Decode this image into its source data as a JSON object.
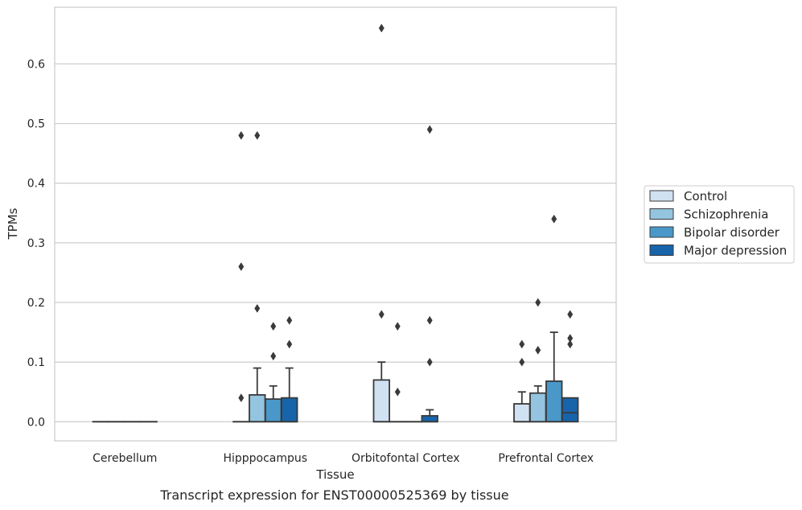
{
  "caption": "Transcript expression for ENST00000525369 by tissue",
  "chart_data": {
    "type": "boxplot",
    "xlabel": "Tissue",
    "ylabel": "TPMs",
    "ylim": [
      -0.032,
      0.695
    ],
    "yticks": [
      0.0,
      0.1,
      0.2,
      0.3,
      0.4,
      0.5,
      0.6
    ],
    "ytick_labels": [
      "0.0",
      "0.1",
      "0.2",
      "0.3",
      "0.4",
      "0.5",
      "0.6"
    ],
    "grid": "horizontal",
    "legend_position": "right",
    "categories": [
      "Cerebellum",
      "Hipppocampus",
      "Orbitofontal Cortex",
      "Prefrontal Cortex"
    ],
    "series": [
      {
        "name": "Control",
        "color": "#d0e1f2",
        "boxes": [
          {
            "q1": 0,
            "median": 0,
            "q3": 0,
            "whislo": 0,
            "whishi": 0,
            "fliers": []
          },
          {
            "q1": 0,
            "median": 0,
            "q3": 0,
            "whislo": 0,
            "whishi": 0,
            "fliers": [
              0.04,
              0.26,
              0.48
            ]
          },
          {
            "q1": 0,
            "median": 0,
            "q3": 0.07,
            "whislo": 0,
            "whishi": 0.1,
            "fliers": [
              0.18,
              0.66
            ]
          },
          {
            "q1": 0,
            "median": 0,
            "q3": 0.03,
            "whislo": 0,
            "whishi": 0.05,
            "fliers": [
              0.1,
              0.13
            ]
          }
        ]
      },
      {
        "name": "Schizophrenia",
        "color": "#94c4df",
        "boxes": [
          {
            "q1": 0,
            "median": 0,
            "q3": 0,
            "whislo": 0,
            "whishi": 0,
            "fliers": []
          },
          {
            "q1": 0,
            "median": 0,
            "q3": 0.045,
            "whislo": 0,
            "whishi": 0.09,
            "fliers": [
              0.19,
              0.48
            ]
          },
          {
            "q1": 0,
            "median": 0,
            "q3": 0,
            "whislo": 0,
            "whishi": 0,
            "fliers": [
              0.05,
              0.16
            ]
          },
          {
            "q1": 0,
            "median": 0,
            "q3": 0.048,
            "whislo": 0,
            "whishi": 0.06,
            "fliers": [
              0.12,
              0.2
            ]
          }
        ]
      },
      {
        "name": "Bipolar disorder",
        "color": "#4a98c9",
        "boxes": [
          {
            "q1": 0,
            "median": 0,
            "q3": 0,
            "whislo": 0,
            "whishi": 0,
            "fliers": []
          },
          {
            "q1": 0,
            "median": 0,
            "q3": 0.038,
            "whislo": 0,
            "whishi": 0.06,
            "fliers": [
              0.11,
              0.16
            ]
          },
          {
            "q1": 0,
            "median": 0,
            "q3": 0,
            "whislo": 0,
            "whishi": 0,
            "fliers": []
          },
          {
            "q1": 0,
            "median": 0,
            "q3": 0.068,
            "whislo": 0,
            "whishi": 0.15,
            "fliers": [
              0.34
            ]
          }
        ]
      },
      {
        "name": "Major depression",
        "color": "#1764ab",
        "boxes": [
          {
            "q1": 0,
            "median": 0,
            "q3": 0,
            "whislo": 0,
            "whishi": 0,
            "fliers": []
          },
          {
            "q1": 0,
            "median": 0,
            "q3": 0.04,
            "whislo": 0,
            "whishi": 0.09,
            "fliers": [
              0.13,
              0.17
            ]
          },
          {
            "q1": 0,
            "median": 0,
            "q3": 0.01,
            "whislo": 0,
            "whishi": 0.02,
            "fliers": [
              0.1,
              0.17,
              0.49
            ]
          },
          {
            "q1": 0,
            "median": 0.015,
            "q3": 0.04,
            "whislo": 0,
            "whishi": 0.04,
            "fliers": [
              0.13,
              0.14,
              0.18
            ]
          }
        ]
      }
    ]
  }
}
